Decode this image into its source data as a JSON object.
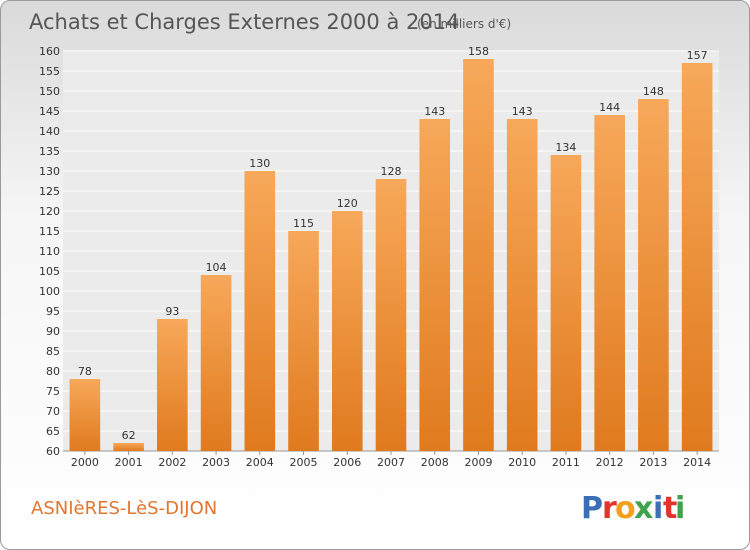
{
  "header": {
    "title": "Achats et Charges Externes 2000 à 2014",
    "subtitle": "(en milliers d'€)"
  },
  "footer": {
    "city": "ASNIèRES-LèS-DIJON",
    "logo_letters": [
      "P",
      "r",
      "o",
      "x",
      "i",
      "t",
      "i"
    ],
    "logo_colors": [
      "#3b6fb6",
      "#e0342f",
      "#f5a01a",
      "#3fa34d",
      "#3b6fb6",
      "#e0342f",
      "#3fa34d"
    ]
  },
  "chart_data": {
    "type": "bar",
    "title": "Achats et Charges Externes 2000 à 2014",
    "subtitle": "(en milliers d'€)",
    "categories": [
      "2000",
      "2001",
      "2002",
      "2003",
      "2004",
      "2005",
      "2006",
      "2007",
      "2008",
      "2009",
      "2010",
      "2011",
      "2012",
      "2013",
      "2014"
    ],
    "values": [
      78,
      62,
      93,
      104,
      130,
      115,
      120,
      128,
      143,
      158,
      143,
      134,
      144,
      148,
      157
    ],
    "ylim": [
      60,
      160
    ],
    "yticks": [
      60,
      65,
      70,
      75,
      80,
      85,
      90,
      95,
      100,
      105,
      110,
      115,
      120,
      125,
      130,
      135,
      140,
      145,
      150,
      155,
      160
    ],
    "grid": true,
    "bar_color_top": "#f7a85a",
    "bar_color_bottom": "#e07a1e"
  }
}
